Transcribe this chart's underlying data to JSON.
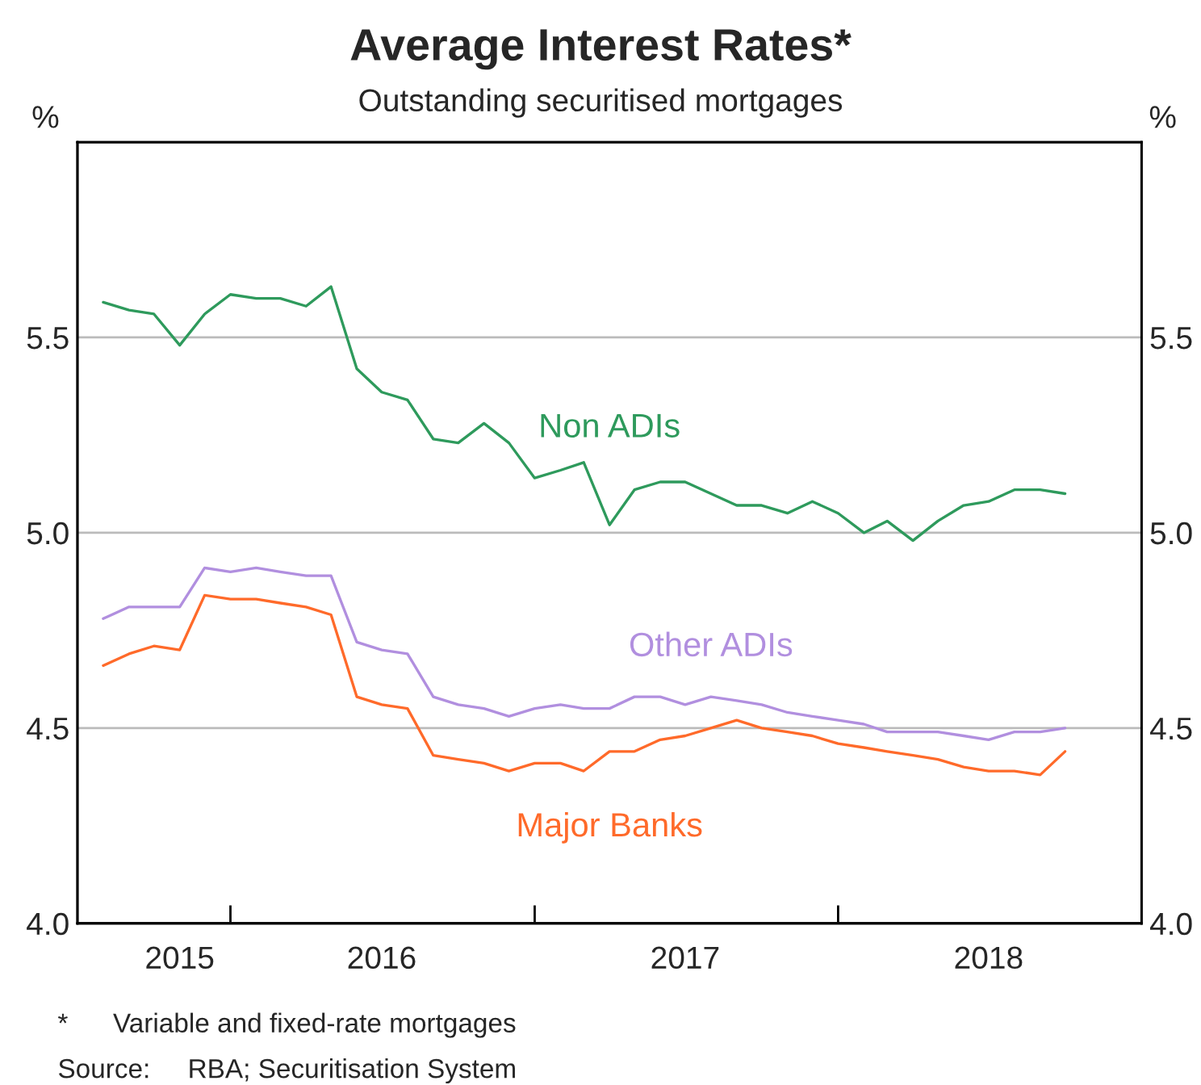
{
  "chart_data": {
    "type": "line",
    "title": "Average Interest Rates*",
    "subtitle": "Outstanding securitised mortgages",
    "ylabel": "%",
    "y2label": "%",
    "x": [
      "2015-08",
      "2015-09",
      "2015-10",
      "2015-11",
      "2015-12",
      "2016-01",
      "2016-02",
      "2016-03",
      "2016-04",
      "2016-05",
      "2016-06",
      "2016-07",
      "2016-08",
      "2016-09",
      "2016-10",
      "2016-11",
      "2016-12",
      "2017-01",
      "2017-02",
      "2017-03",
      "2017-04",
      "2017-05",
      "2017-06",
      "2017-07",
      "2017-08",
      "2017-09",
      "2017-10",
      "2017-11",
      "2017-12",
      "2018-01",
      "2018-02",
      "2018-03",
      "2018-04",
      "2018-05",
      "2018-06",
      "2018-07",
      "2018-08",
      "2018-09",
      "2018-10"
    ],
    "series": [
      {
        "name": "Non ADIs",
        "color": "#2e9a5c",
        "values": [
          5.59,
          5.57,
          5.56,
          5.48,
          5.56,
          5.61,
          5.6,
          5.6,
          5.58,
          5.63,
          5.42,
          5.36,
          5.34,
          5.24,
          5.23,
          5.28,
          5.23,
          5.14,
          5.16,
          5.18,
          5.02,
          5.11,
          5.13,
          5.13,
          5.1,
          5.07,
          5.07,
          5.05,
          5.08,
          5.05,
          5.0,
          5.03,
          4.98,
          5.03,
          5.07,
          5.08,
          5.11,
          5.11,
          5.1
        ]
      },
      {
        "name": "Other ADIs",
        "color": "#b18fdf",
        "values": [
          4.78,
          4.81,
          4.81,
          4.81,
          4.91,
          4.9,
          4.91,
          4.9,
          4.89,
          4.89,
          4.72,
          4.7,
          4.69,
          4.58,
          4.56,
          4.55,
          4.53,
          4.55,
          4.56,
          4.55,
          4.55,
          4.58,
          4.58,
          4.56,
          4.58,
          4.57,
          4.56,
          4.54,
          4.53,
          4.52,
          4.51,
          4.49,
          4.49,
          4.49,
          4.48,
          4.47,
          4.49,
          4.49,
          4.5
        ]
      },
      {
        "name": "Major Banks",
        "color": "#ff6a2a",
        "values": [
          4.66,
          4.69,
          4.71,
          4.7,
          4.84,
          4.83,
          4.83,
          4.82,
          4.81,
          4.79,
          4.58,
          4.56,
          4.55,
          4.43,
          4.42,
          4.41,
          4.39,
          4.41,
          4.41,
          4.39,
          4.44,
          4.44,
          4.47,
          4.48,
          4.5,
          4.52,
          4.5,
          4.49,
          4.48,
          4.46,
          4.45,
          4.44,
          4.43,
          4.42,
          4.4,
          4.39,
          4.39,
          4.38,
          4.44
        ]
      }
    ],
    "xlim": [
      "2015-07",
      "2019-01"
    ],
    "xticks": [
      {
        "value": "2016-01",
        "label": null
      },
      {
        "value": "2017-01",
        "label": null
      },
      {
        "value": "2018-01",
        "label": null
      },
      {
        "value": "2015-11",
        "label": "2015"
      },
      {
        "value": "2016-07",
        "label": "2016"
      },
      {
        "value": "2017-07",
        "label": "2017"
      },
      {
        "value": "2018-07",
        "label": "2018"
      }
    ],
    "ylim": [
      4.0,
      6.0
    ],
    "yticks": [
      {
        "value": 4.0,
        "label": "4.0"
      },
      {
        "value": 4.5,
        "label": "4.5"
      },
      {
        "value": 5.0,
        "label": "5.0"
      },
      {
        "value": 5.5,
        "label": "5.5"
      }
    ],
    "y2lim": [
      4.0,
      6.0
    ],
    "y2ticks": [
      {
        "value": 4.0,
        "label": "4.0"
      },
      {
        "value": 4.5,
        "label": "4.5"
      },
      {
        "value": 5.0,
        "label": "5.0"
      },
      {
        "value": 5.5,
        "label": "5.5"
      }
    ],
    "grid": "y",
    "legend": false,
    "annotations": [
      "*      Variable and fixed-rate mortgages",
      "Source:     RBA; Securitisation System"
    ]
  }
}
